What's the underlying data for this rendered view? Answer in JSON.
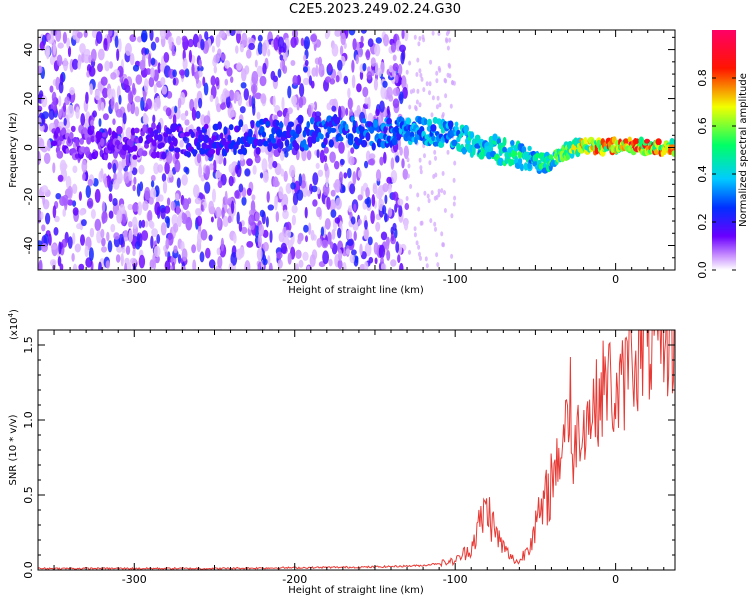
{
  "title": "C2E5.2023.249.02.24.G30",
  "chart_data": [
    {
      "type": "heatmap",
      "title": "",
      "xlabel": "Height of straight line (km)",
      "ylabel": "Frequency (Hz)",
      "xlim": [
        -360,
        37
      ],
      "ylim": [
        -50,
        48
      ],
      "xticks": [
        -300,
        -200,
        -100,
        0
      ],
      "yticks": [
        -40,
        -20,
        0,
        20,
        40
      ],
      "colorbar": {
        "label": "Normalized spectral amplitude",
        "range": [
          0,
          1
        ],
        "ticks": [
          "0.0",
          "0.2",
          "0.4",
          "0.6",
          "0.8"
        ],
        "colormap": "rainbow (white-violet-blue-cyan-green-yellow-red-magenta)"
      },
      "ridge": {
        "description": "dominant frequency band near 0 Hz",
        "x": [
          -300,
          -250,
          -200,
          -150,
          -120,
          -100,
          -80,
          -60,
          -50,
          -40,
          -30,
          -20,
          -10,
          0,
          10,
          20,
          37
        ],
        "y": [
          2,
          3,
          6,
          6,
          7,
          5,
          0,
          -3,
          -5,
          -5,
          -1,
          1,
          0,
          1,
          1,
          0,
          0
        ],
        "amplitude": [
          0.15,
          0.25,
          0.3,
          0.35,
          0.4,
          0.45,
          0.5,
          0.55,
          0.5,
          0.55,
          0.65,
          0.75,
          0.85,
          0.8,
          0.9,
          0.85,
          0.8
        ]
      },
      "scatter_noise": {
        "x_range": [
          -360,
          -130
        ],
        "description": "broadband low-amplitude noise across all frequencies"
      }
    },
    {
      "type": "line",
      "title": "",
      "xlabel": "Height of straight line (km)",
      "ylabel": "SNR (10 * v/v)",
      "y_scale_label": "(x10",
      "y_scale_exponent": "4",
      "y_scale_suffix": ")",
      "xlim": [
        -360,
        37
      ],
      "ylim": [
        0,
        1.6
      ],
      "xticks": [
        -300,
        -200,
        -100,
        0
      ],
      "yticks": [
        "0.0",
        "0.5",
        "1.0",
        "1.5"
      ],
      "series": [
        {
          "color": "#e83a35",
          "x": [
            -360,
            -250,
            -150,
            -120,
            -100,
            -90,
            -85,
            -80,
            -75,
            -70,
            -65,
            -60,
            -55,
            -50,
            -45,
            -40,
            -35,
            -30,
            -28,
            -25,
            -20,
            -15,
            -10,
            -5,
            0,
            5,
            10,
            15,
            20,
            25,
            30,
            37
          ],
          "y": [
            0.01,
            0.01,
            0.02,
            0.03,
            0.06,
            0.15,
            0.3,
            0.42,
            0.25,
            0.15,
            0.08,
            0.05,
            0.15,
            0.3,
            0.4,
            0.6,
            0.75,
            1.1,
            0.6,
            0.9,
            1.0,
            1.05,
            1.15,
            1.3,
            1.1,
            1.25,
            1.4,
            1.45,
            1.5,
            1.48,
            1.55,
            1.57
          ]
        }
      ]
    }
  ]
}
